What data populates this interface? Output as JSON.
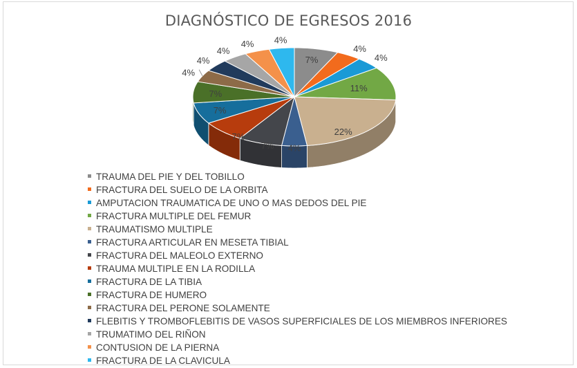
{
  "chart_data": {
    "type": "pie",
    "title": "DIAGNÓSTICO DE EGRESOS 2016",
    "legend_position": "bottom",
    "style": "3d",
    "slices": [
      {
        "label": "TRAUMA DEL PIE Y DEL TOBILLO",
        "value": 7,
        "data_label": "7%",
        "color": "#8c8c8c"
      },
      {
        "label": "FRACTURA DEL SUELO DE LA ORBITA",
        "value": 4,
        "data_label": "4%",
        "color": "#f26b1d"
      },
      {
        "label": "AMPUTACION TRAUMATICA DE UNO O MAS DEDOS DEL PIE",
        "value": 4,
        "data_label": "4%",
        "color": "#1a9ad6"
      },
      {
        "label": "FRACTURA MULTIPLE DEL FEMUR",
        "value": 11,
        "data_label": "11%",
        "color": "#72a845"
      },
      {
        "label": "TRAUMATISMO MULTIPLE",
        "value": 22,
        "data_label": "22%",
        "color": "#c9b08f"
      },
      {
        "label": "FRACTURA ARTICULAR EN MESETA TIBIAL",
        "value": 4,
        "data_label": "4%",
        "color": "#3a5f8f"
      },
      {
        "label": "FRACTURA DEL MALEOLO EXTERNO",
        "value": 7,
        "data_label": "7%",
        "color": "#44464b"
      },
      {
        "label": "TRAUMA MULTIPLE EN LA RODILLA",
        "value": 7,
        "data_label": "7%",
        "color": "#b73c0d"
      },
      {
        "label": "FRACTURA DE LA TIBIA",
        "value": 7,
        "data_label": "7%",
        "color": "#166e9c"
      },
      {
        "label": "FRACTURA DE HUMERO",
        "value": 7,
        "data_label": "7%",
        "color": "#4a7028"
      },
      {
        "label": "FRACTURA DEL PERONE SOLAMENTE",
        "value": 4,
        "data_label": "4%",
        "color": "#8d6b48"
      },
      {
        "label": "FLEBITIS Y TROMBOFLEBITIS DE VASOS SUPERFICIALES DE LOS MIEMBROS INFERIORES",
        "value": 4,
        "data_label": "4%",
        "color": "#213b5c"
      },
      {
        "label": "TRUMATIMO DEL RIÑON",
        "value": 4,
        "data_label": "4%",
        "color": "#a6a6a6"
      },
      {
        "label": "CONTUSION DE LA PIERNA",
        "value": 4,
        "data_label": "4%",
        "color": "#f4914a"
      },
      {
        "label": "FRACTURA DE LA CLAVICULA",
        "value": 4,
        "data_label": "4%",
        "color": "#2eb8ee"
      }
    ]
  }
}
